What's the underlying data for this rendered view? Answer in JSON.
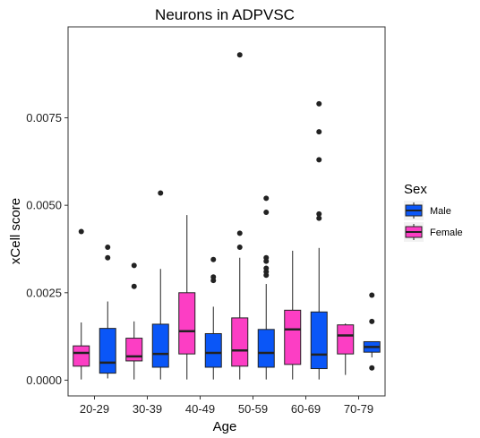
{
  "chart_data": {
    "type": "boxplot",
    "title": "Neurons in ADPVSC",
    "xlabel": "Age",
    "ylabel": "xCell score",
    "ylim": [
      -0.00045,
      0.0101
    ],
    "yticks": [
      0.0,
      0.0025,
      0.005,
      0.0075
    ],
    "ytick_labels": [
      "0.0000",
      "0.0025",
      "0.0050",
      "0.0075"
    ],
    "categories": [
      "20-29",
      "30-39",
      "40-49",
      "50-59",
      "60-69",
      "70-79"
    ],
    "legend": {
      "title": "Sex",
      "position": "right"
    },
    "grid": false,
    "series": [
      {
        "name": "Male",
        "color": "#0a56f7",
        "boxes": [
          {
            "category": "20-29",
            "min": 5e-05,
            "q1": 0.0002,
            "median": 0.0005,
            "q3": 0.00148,
            "max": 0.00225,
            "outliers": [
              0.0038,
              0.0035
            ]
          },
          {
            "category": "30-39",
            "min": 2e-05,
            "q1": 0.00037,
            "median": 0.00075,
            "q3": 0.0016,
            "max": 0.00318,
            "outliers": [
              0.00535
            ]
          },
          {
            "category": "40-49",
            "min": 2e-05,
            "q1": 0.00037,
            "median": 0.00078,
            "q3": 0.00133,
            "max": 0.0021,
            "outliers": [
              0.00345,
              0.00295,
              0.00285
            ]
          },
          {
            "category": "50-59",
            "min": 2e-05,
            "q1": 0.00037,
            "median": 0.00078,
            "q3": 0.00145,
            "max": 0.00275,
            "outliers": [
              0.0052,
              0.0048,
              0.0035,
              0.0034,
              0.0032,
              0.0031,
              0.003
            ]
          },
          {
            "category": "60-69",
            "min": 2e-05,
            "q1": 0.00033,
            "median": 0.00073,
            "q3": 0.00195,
            "max": 0.00378,
            "outliers": [
              0.0079,
              0.0071,
              0.0063,
              0.00475,
              0.00463
            ]
          },
          {
            "category": "70-79",
            "min": 0.00065,
            "q1": 0.0008,
            "median": 0.00095,
            "q3": 0.0011,
            "max": 0.0011,
            "outliers": [
              0.00243,
              0.00168,
              0.00035
            ]
          }
        ]
      },
      {
        "name": "Female",
        "color": "#fc3ec4",
        "boxes": [
          {
            "category": "20-29",
            "min": 2e-05,
            "q1": 0.0004,
            "median": 0.00078,
            "q3": 0.00098,
            "max": 0.00165,
            "outliers": [
              0.00425
            ]
          },
          {
            "category": "30-39",
            "min": 2e-05,
            "q1": 0.00055,
            "median": 0.00068,
            "q3": 0.0012,
            "max": 0.00168,
            "outliers": [
              0.00328,
              0.00268
            ]
          },
          {
            "category": "40-49",
            "min": 2e-05,
            "q1": 0.00075,
            "median": 0.0014,
            "q3": 0.0025,
            "max": 0.00472,
            "outliers": []
          },
          {
            "category": "50-59",
            "min": 2e-05,
            "q1": 0.0004,
            "median": 0.00085,
            "q3": 0.00178,
            "max": 0.0035,
            "outliers": [
              0.0093,
              0.0042,
              0.0038
            ]
          },
          {
            "category": "60-69",
            "min": 2e-05,
            "q1": 0.00045,
            "median": 0.00145,
            "q3": 0.002,
            "max": 0.0037,
            "outliers": []
          },
          {
            "category": "70-79",
            "min": 0.00015,
            "q1": 0.00075,
            "median": 0.00128,
            "q3": 0.00158,
            "max": 0.00162,
            "outliers": []
          }
        ]
      }
    ]
  }
}
